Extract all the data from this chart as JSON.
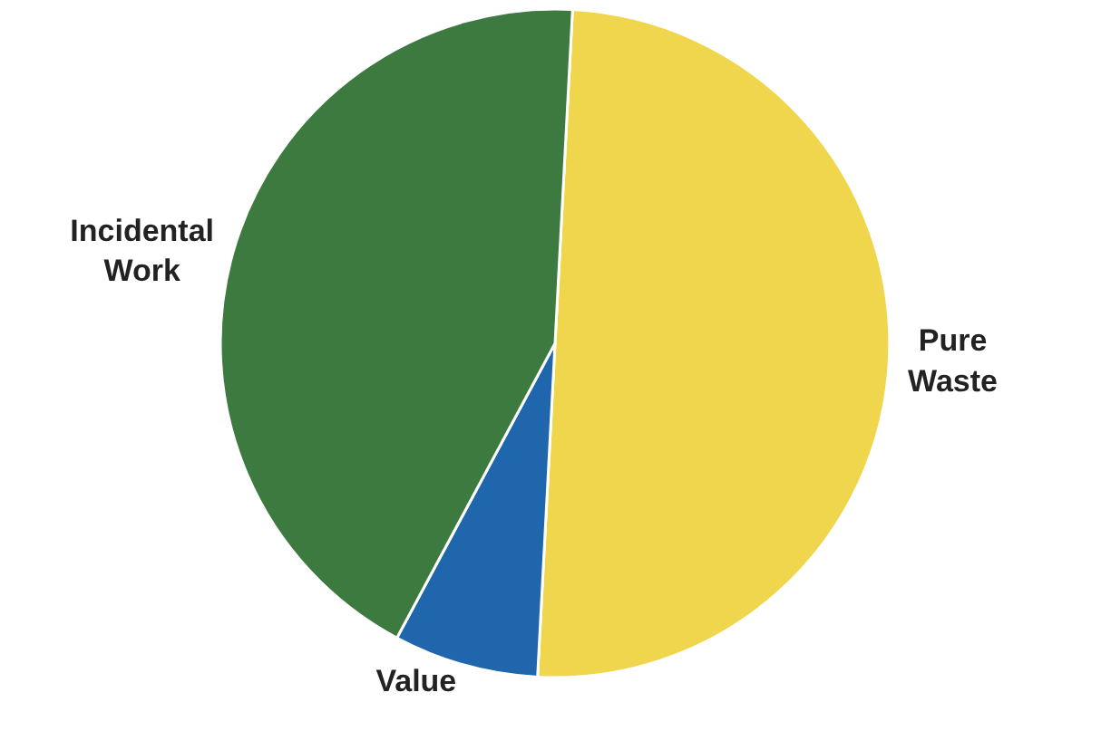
{
  "chart_data": {
    "type": "pie",
    "categories": [
      "Pure Waste",
      "Value",
      "Incidental Work"
    ],
    "values": [
      50,
      7,
      43
    ],
    "colors": [
      "#f0d64c",
      "#1f66ad",
      "#3d7a40"
    ],
    "legend": false
  }
}
